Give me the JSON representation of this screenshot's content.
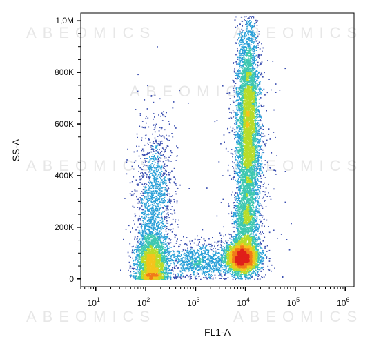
{
  "watermark": "ABEOMICS",
  "chart_data": {
    "type": "scatter",
    "subtype": "flow-cytometry-density-dot-plot",
    "xlabel": "FL1-A",
    "ylabel": "SS-A",
    "x_scale": "log",
    "xlim": [
      5,
      1500000
    ],
    "ylim": [
      -30000,
      1030000
    ],
    "x_ticks": [
      {
        "value": 10,
        "base": "10",
        "exp": "1"
      },
      {
        "value": 100,
        "base": "10",
        "exp": "2"
      },
      {
        "value": 1000,
        "base": "10",
        "exp": "3"
      },
      {
        "value": 10000,
        "base": "10",
        "exp": "4"
      },
      {
        "value": 100000,
        "base": "10",
        "exp": "5"
      },
      {
        "value": 1000000,
        "base": "10",
        "exp": "6"
      }
    ],
    "y_ticks": [
      {
        "value": 0,
        "label": "0"
      },
      {
        "value": 200000,
        "label": "200K"
      },
      {
        "value": 400000,
        "label": "400K"
      },
      {
        "value": 600000,
        "label": "600K"
      },
      {
        "value": 800000,
        "label": "800K"
      },
      {
        "value": 1000000,
        "label": "1,0M"
      }
    ],
    "density_colors": [
      "#3b4fb0",
      "#2aa0d8",
      "#3ec8b0",
      "#b8dc2a",
      "#f4c41c",
      "#f07a1a",
      "#e0201a"
    ],
    "populations": [
      {
        "name": "",
        "n": 2600,
        "x_center": 130,
        "x_log_sd": 0.16,
        "y_center": 60000,
        "y_sd": 60000,
        "y_min": 0
      },
      {
        "name": "",
        "n": 1400,
        "x_center": 150,
        "x_log_sd": 0.2,
        "y_center": 300000,
        "y_sd": 160000,
        "y_min": 0
      },
      {
        "name": "",
        "n": 3600,
        "x_center": 8500,
        "x_log_sd": 0.17,
        "y_center": 85000,
        "y_sd": 32000,
        "y_min": 0
      },
      {
        "name": "",
        "n": 5200,
        "x_center": 11000,
        "x_log_sd": 0.11,
        "y_center": 590000,
        "y_sd": 200000,
        "y_min": 150000
      },
      {
        "name": "",
        "n": 900,
        "x_center": 10000,
        "x_log_sd": 0.12,
        "y_center": 230000,
        "y_sd": 60000,
        "y_min": 100000
      },
      {
        "name": "",
        "n": 900,
        "x_center": 1200,
        "x_log_sd": 0.35,
        "y_center": 70000,
        "y_sd": 35000,
        "y_min": 0
      },
      {
        "name": "",
        "n": 500,
        "x_center": 12000,
        "x_log_sd": 0.25,
        "y_center": 400000,
        "y_sd": 250000,
        "y_min": 0
      }
    ]
  }
}
